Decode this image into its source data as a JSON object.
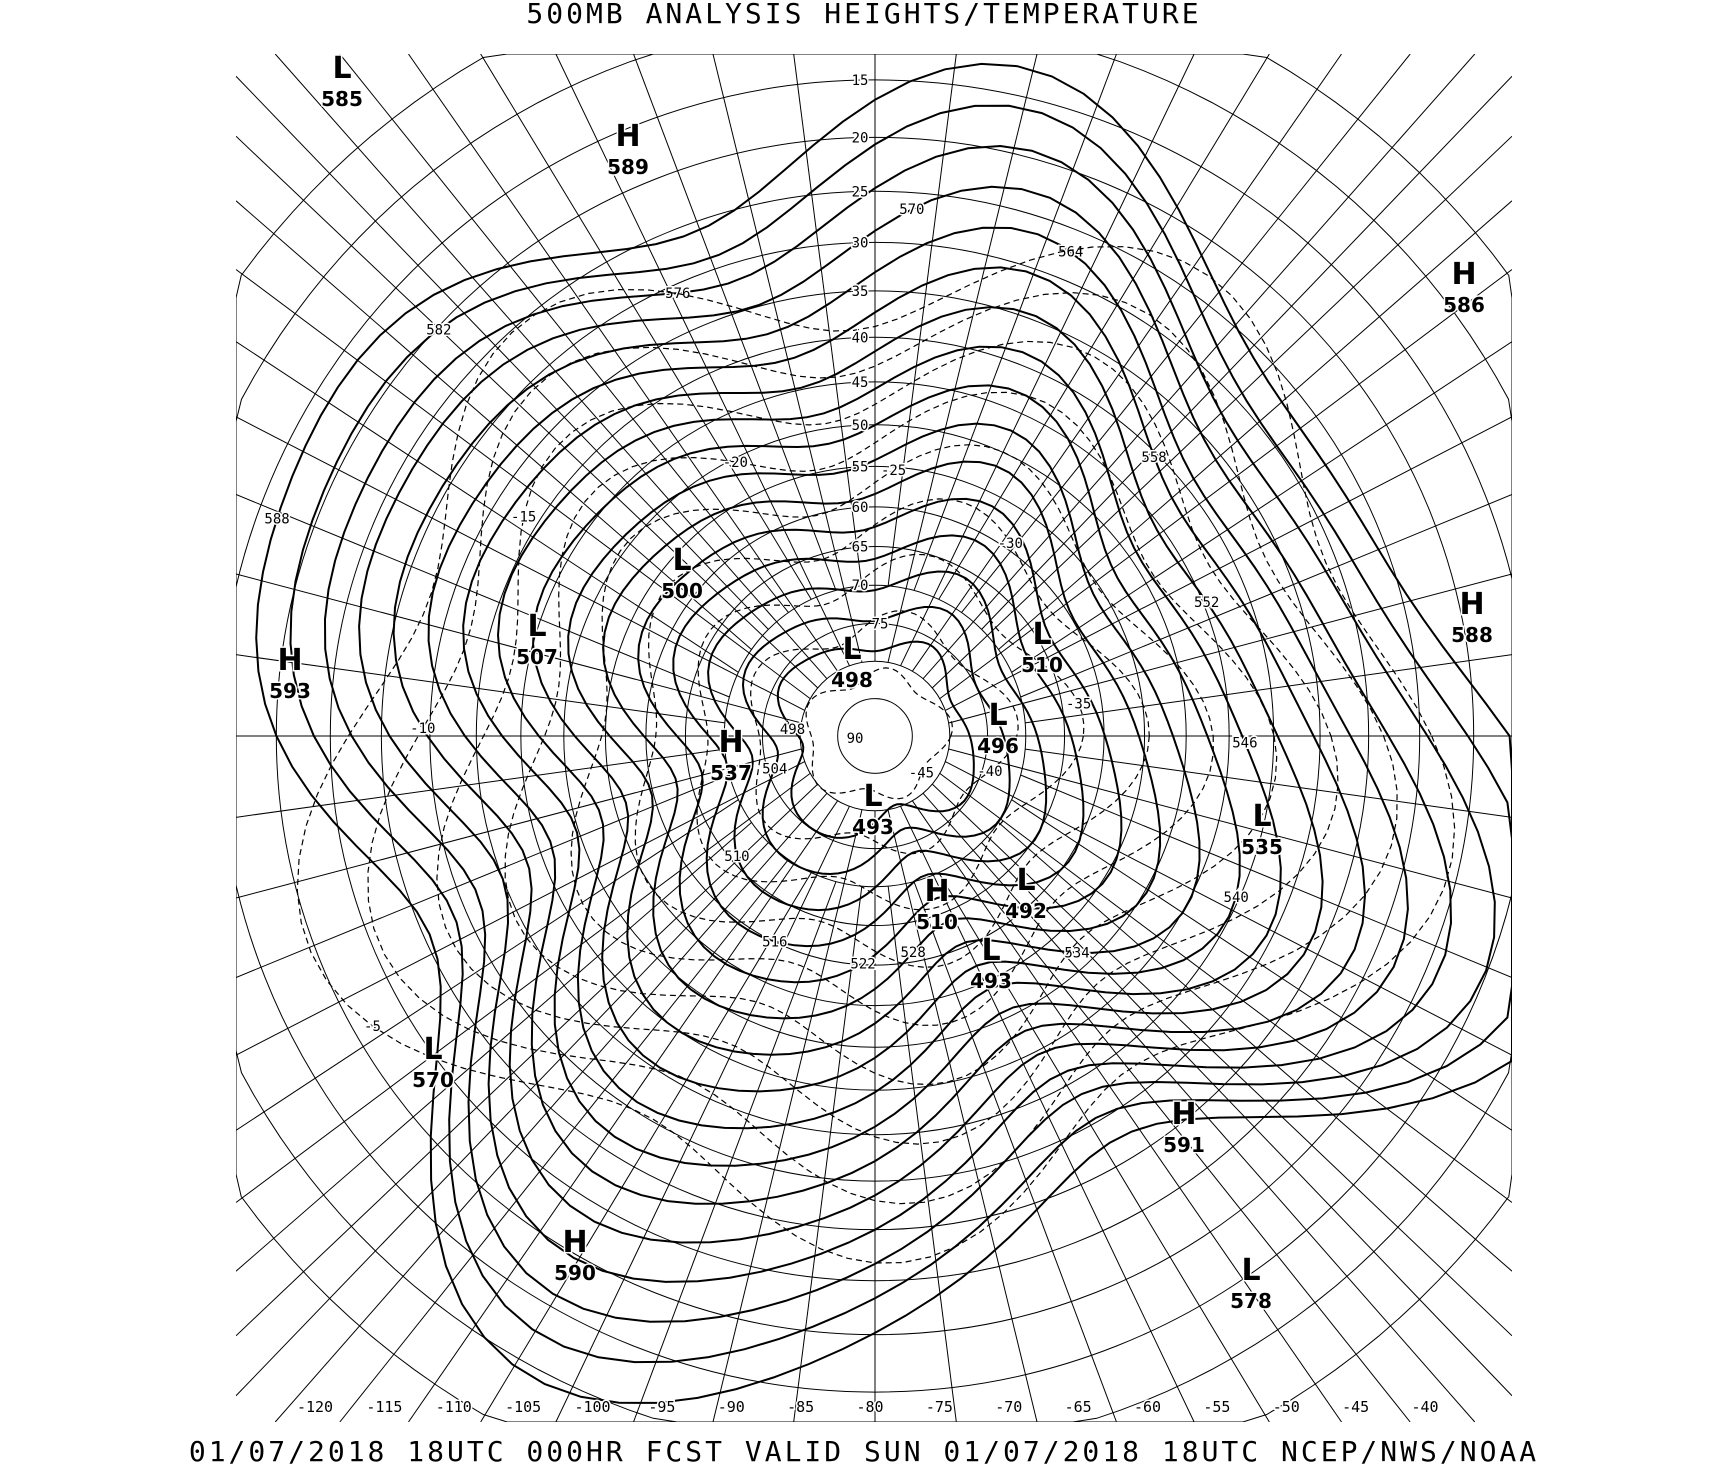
{
  "title": "500MB ANALYSIS  HEIGHTS/TEMPERATURE",
  "footer": "01/07/2018 18UTC 000HR FCST VALID SUN 01/07/2018 18UTC  NCEP/NWS/NOAA",
  "longitude_labels": [
    "-120",
    "-115",
    "-110",
    "-105",
    "-100",
    "-95",
    "-90",
    "-85",
    "-80",
    "-75",
    "-70",
    "-65",
    "-60",
    "-55",
    "-50",
    "-45",
    "-40"
  ],
  "latitude_labels": [
    "15",
    "20",
    "25",
    "30",
    "35",
    "40",
    "45",
    "50",
    "55",
    "60",
    "65",
    "70",
    "75",
    "90"
  ],
  "pressure_centers": [
    {
      "type": "L",
      "value": "585"
    },
    {
      "type": "H",
      "value": "589"
    },
    {
      "type": "H",
      "value": "586"
    },
    {
      "type": "H",
      "value": "588"
    },
    {
      "type": "H",
      "value": "593"
    },
    {
      "type": "L",
      "value": "500"
    },
    {
      "type": "L",
      "value": "507"
    },
    {
      "type": "L",
      "value": "498"
    },
    {
      "type": "L",
      "value": "510"
    },
    {
      "type": "L",
      "value": "496"
    },
    {
      "type": "H",
      "value": "537"
    },
    {
      "type": "L",
      "value": "535"
    },
    {
      "type": "L",
      "value": "493"
    },
    {
      "type": "L",
      "value": "492"
    },
    {
      "type": "H",
      "value": "510"
    },
    {
      "type": "L",
      "value": "493"
    },
    {
      "type": "L",
      "value": "570"
    },
    {
      "type": "H",
      "value": "591"
    },
    {
      "type": "H",
      "value": "590"
    },
    {
      "type": "L",
      "value": "578"
    }
  ],
  "height_contour_labels": [
    "588",
    "582",
    "576",
    "570",
    "564",
    "558",
    "552",
    "546",
    "540",
    "534",
    "528",
    "522",
    "516",
    "510",
    "504",
    "498"
  ],
  "temperature_contour_labels": [
    "-5",
    "-10",
    "-15",
    "-20",
    "-25",
    "-30",
    "-35",
    "-40",
    "-45"
  ],
  "line_style": {
    "heights": "solid",
    "temperature": "dashed",
    "color": "#000000"
  }
}
